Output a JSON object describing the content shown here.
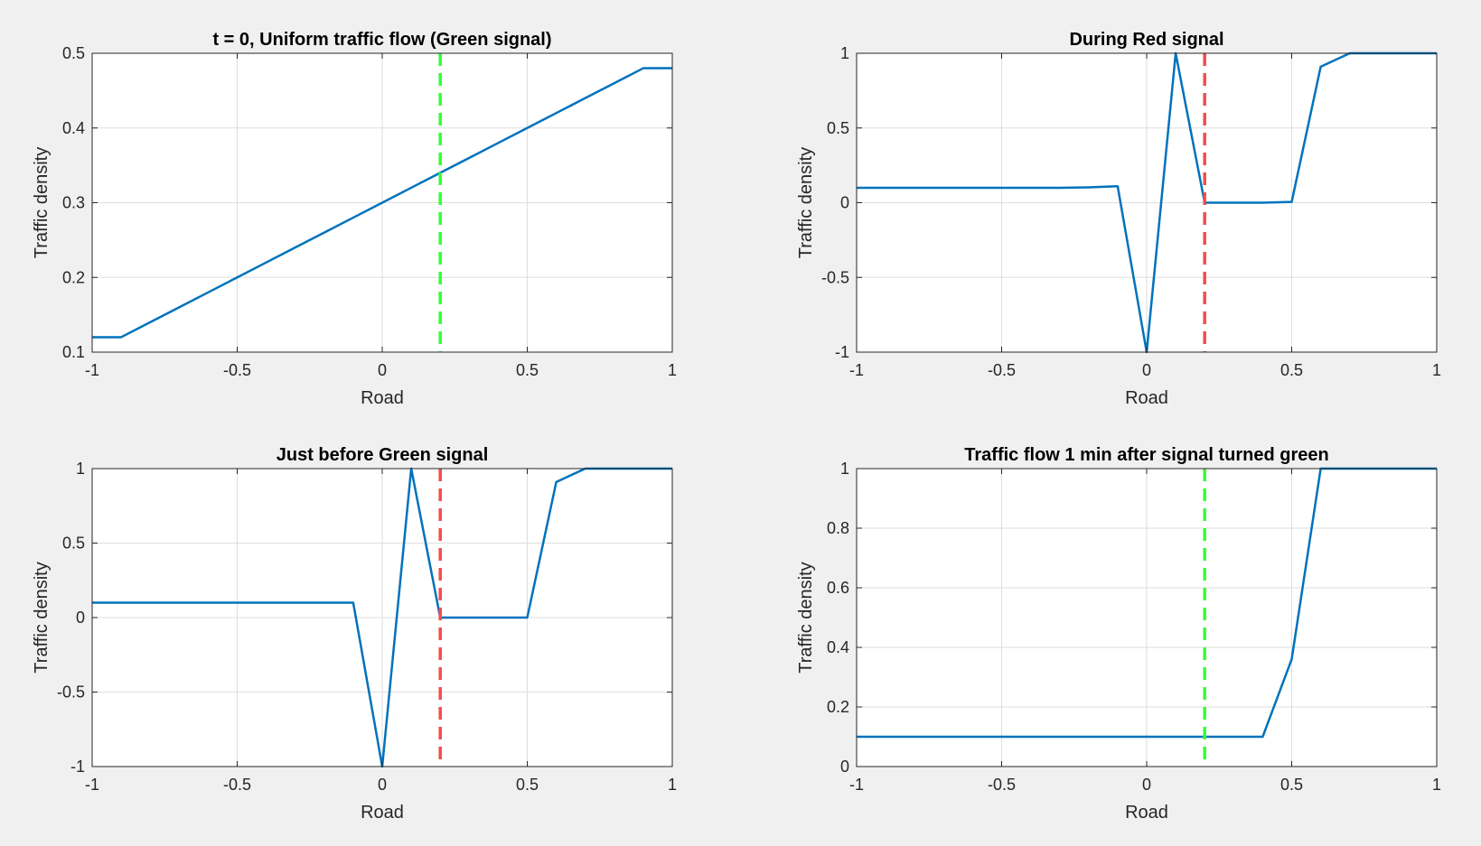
{
  "colors": {
    "background": "#f0f0f0",
    "axes_bg": "#ffffff",
    "grid": "#dedede",
    "axis": "#262626",
    "line": "#0072bd",
    "green_signal": "#33ff33",
    "red_signal": "#f24d4d"
  },
  "chart_data": [
    {
      "type": "line",
      "title": "t = 0, Uniform traffic flow (Green signal)",
      "xlabel": "Road",
      "ylabel": "Traffic density",
      "xlim": [
        -1,
        1
      ],
      "ylim": [
        0.1,
        0.5
      ],
      "xticks": [
        -1,
        -0.5,
        0,
        0.5,
        1
      ],
      "xtick_labels": [
        "-1",
        "-0.5",
        "0",
        "0.5",
        "1"
      ],
      "yticks": [
        0.1,
        0.2,
        0.3,
        0.4,
        0.5
      ],
      "ytick_labels": [
        "0.1",
        "0.2",
        "0.3",
        "0.4",
        "0.5"
      ],
      "grid": true,
      "series": [
        {
          "x": [
            -1,
            -0.9,
            -0.8,
            -0.7,
            -0.6,
            -0.5,
            -0.4,
            -0.3,
            -0.2,
            -0.1,
            0,
            0.1,
            0.2,
            0.3,
            0.4,
            0.5,
            0.6,
            0.7,
            0.8,
            0.9,
            1
          ],
          "y": [
            0.12,
            0.12,
            0.14,
            0.16,
            0.18,
            0.2,
            0.22,
            0.24,
            0.26,
            0.28,
            0.3,
            0.32,
            0.34,
            0.36,
            0.38,
            0.4,
            0.42,
            0.44,
            0.46,
            0.48,
            0.48
          ]
        }
      ],
      "signal": {
        "x": 0.2,
        "state": "green"
      }
    },
    {
      "type": "line",
      "title": "During Red signal",
      "xlabel": "Road",
      "ylabel": "Traffic density",
      "xlim": [
        -1,
        1
      ],
      "ylim": [
        -1,
        1
      ],
      "xticks": [
        -1,
        -0.5,
        0,
        0.5,
        1
      ],
      "xtick_labels": [
        "-1",
        "-0.5",
        "0",
        "0.5",
        "1"
      ],
      "yticks": [
        -1,
        -0.5,
        0,
        0.5,
        1
      ],
      "ytick_labels": [
        "-1",
        "-0.5",
        "0",
        "0.5",
        "1"
      ],
      "grid": true,
      "series": [
        {
          "x": [
            -1,
            -0.9,
            -0.8,
            -0.7,
            -0.6,
            -0.5,
            -0.4,
            -0.3,
            -0.2,
            -0.1,
            0,
            0.1,
            0.2,
            0.3,
            0.4,
            0.5,
            0.6,
            0.7,
            0.8,
            0.9,
            1
          ],
          "y": [
            0.1,
            0.1,
            0.1,
            0.1,
            0.1,
            0.1,
            0.1,
            0.1,
            0.103,
            0.11,
            -1,
            1,
            0,
            0,
            0,
            0.005,
            0.91,
            1,
            1,
            1,
            1
          ]
        }
      ],
      "signal": {
        "x": 0.2,
        "state": "red"
      }
    },
    {
      "type": "line",
      "title": "Just before Green signal",
      "xlabel": "Road",
      "ylabel": "Traffic density",
      "xlim": [
        -1,
        1
      ],
      "ylim": [
        -1,
        1
      ],
      "xticks": [
        -1,
        -0.5,
        0,
        0.5,
        1
      ],
      "xtick_labels": [
        "-1",
        "-0.5",
        "0",
        "0.5",
        "1"
      ],
      "yticks": [
        -1,
        -0.5,
        0,
        0.5,
        1
      ],
      "ytick_labels": [
        "-1",
        "-0.5",
        "0",
        "0.5",
        "1"
      ],
      "grid": true,
      "series": [
        {
          "x": [
            -1,
            -0.9,
            -0.8,
            -0.7,
            -0.6,
            -0.5,
            -0.4,
            -0.3,
            -0.2,
            -0.1,
            0,
            0.1,
            0.2,
            0.3,
            0.4,
            0.5,
            0.6,
            0.7,
            0.8,
            0.9,
            1
          ],
          "y": [
            0.1,
            0.1,
            0.1,
            0.1,
            0.1,
            0.1,
            0.1,
            0.1,
            0.1,
            0.1,
            -1,
            1,
            0,
            0,
            0,
            0,
            0.91,
            1,
            1,
            1,
            1
          ]
        }
      ],
      "signal": {
        "x": 0.2,
        "state": "red"
      }
    },
    {
      "type": "line",
      "title": "Traffic flow 1 min after signal turned green",
      "xlabel": "Road",
      "ylabel": "Traffic density",
      "xlim": [
        -1,
        1
      ],
      "ylim": [
        0,
        1
      ],
      "xticks": [
        -1,
        -0.5,
        0,
        0.5,
        1
      ],
      "xtick_labels": [
        "-1",
        "-0.5",
        "0",
        "0.5",
        "1"
      ],
      "yticks": [
        0,
        0.2,
        0.4,
        0.6,
        0.8,
        1
      ],
      "ytick_labels": [
        "0",
        "0.2",
        "0.4",
        "0.6",
        "0.8",
        "1"
      ],
      "grid": true,
      "series": [
        {
          "x": [
            -1,
            -0.9,
            -0.8,
            -0.7,
            -0.6,
            -0.5,
            -0.4,
            -0.3,
            -0.2,
            -0.1,
            0,
            0.1,
            0.2,
            0.3,
            0.4,
            0.5,
            0.6,
            0.7,
            0.8,
            0.9,
            1
          ],
          "y": [
            0.1,
            0.1,
            0.1,
            0.1,
            0.1,
            0.1,
            0.1,
            0.1,
            0.1,
            0.1,
            0.1,
            0.1,
            0.1,
            0.1,
            0.1,
            0.36,
            1,
            1,
            1,
            1,
            1
          ]
        }
      ],
      "signal": {
        "x": 0.2,
        "state": "green"
      }
    }
  ]
}
